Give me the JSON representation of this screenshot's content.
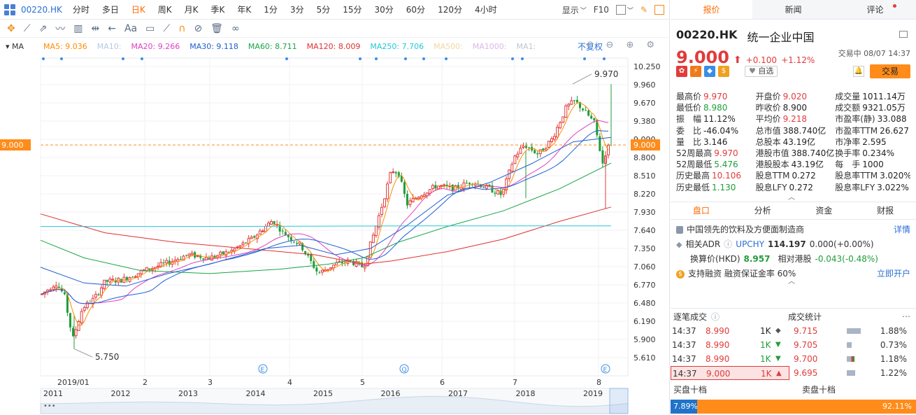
{
  "toolbar": {
    "code": "00220.HK",
    "periods": [
      "分时",
      "多日",
      "日K",
      "周K",
      "月K",
      "季K",
      "年K",
      "1分",
      "3分",
      "5分",
      "15分",
      "30分",
      "60分",
      "120分",
      "4小时"
    ],
    "active_period": "日K",
    "display_label": "显示",
    "f10_label": "F10"
  },
  "ma_legend": {
    "tag": "MA",
    "items": [
      {
        "label": "MA5: 9.036",
        "color": "#ff8c00"
      },
      {
        "label": "MA10:",
        "color": "#b8c8e8"
      },
      {
        "label": "MA20: 9.266",
        "color": "#e040c0"
      },
      {
        "label": "MA30: 9.118",
        "color": "#1f5fd1"
      },
      {
        "label": "MA60: 8.711",
        "color": "#1aa34a"
      },
      {
        "label": "MA120: 8.009",
        "color": "#e03030"
      },
      {
        "label": "MA250: 7.706",
        "color": "#22c8d8"
      },
      {
        "label": "MA500:",
        "color": "#f2d6a0"
      },
      {
        "label": "MA1000:",
        "color": "#d8b8e8"
      },
      {
        "label": "MA1:",
        "color": "#bfc6cf"
      }
    ],
    "adjust_label": "不复权"
  },
  "chart_data": {
    "type": "candlestick",
    "y_ticks": [
      "10.250",
      "9.960",
      "9.670",
      "9.380",
      "9.090",
      "9.000",
      "8.800",
      "8.510",
      "8.220",
      "7.930",
      "7.640",
      "7.350",
      "7.060",
      "6.770",
      "6.480",
      "6.190",
      "5.900",
      "5.610"
    ],
    "ylim": [
      5.61,
      10.25
    ],
    "current_price_line": 9.0,
    "x_labels": [
      "2019/01",
      "2",
      "3",
      "4",
      "5",
      "6",
      "7",
      "8"
    ],
    "high_marker": "9.970",
    "low_marker": "5.750",
    "ma": {
      "MA5": 9.036,
      "MA20": 9.266,
      "MA30": 9.118,
      "MA60": 8.711,
      "MA120": 8.009,
      "MA250": 7.706
    },
    "nav_years": [
      "2011",
      "2012",
      "2013",
      "2014",
      "2015",
      "2016",
      "2017",
      "2018",
      "2019"
    ]
  },
  "tabs": [
    "报价",
    "新闻",
    "评论"
  ],
  "quote": {
    "code": "00220.HK",
    "name": "统一企业中国",
    "price": "9.000",
    "arrow": "⬆",
    "change": "+0.100",
    "change_pct": "+1.12%",
    "status": "交易中 08/07 14:37",
    "watch_label": "自选",
    "trade_label": "交易"
  },
  "stats": [
    [
      [
        "最高价",
        "9.970",
        "red"
      ],
      [
        "开盘价",
        "9.020",
        "red"
      ],
      [
        "成交量",
        "1011.14万",
        "dark"
      ]
    ],
    [
      [
        "最低价",
        "8.980",
        "green"
      ],
      [
        "昨收价",
        "8.900",
        "dark"
      ],
      [
        "成交额",
        "9321.05万",
        "dark"
      ]
    ],
    [
      [
        "振　幅",
        "11.12%",
        "dark"
      ],
      [
        "平均价",
        "9.218",
        "red"
      ],
      [
        "市盈率(静)",
        "33.088",
        "dark"
      ]
    ],
    [
      [
        "委　比",
        "-46.04%",
        "dark"
      ],
      [
        "总市值",
        "388.740亿",
        "dark"
      ],
      [
        "市盈率TTM",
        "26.627",
        "dark"
      ]
    ],
    [
      [
        "量　比",
        "3.146",
        "dark"
      ],
      [
        "总股本",
        "43.19亿",
        "dark"
      ],
      [
        "市净率",
        "2.595",
        "dark"
      ]
    ],
    [
      [
        "52周最高",
        "9.970",
        "red"
      ],
      [
        "港股市值",
        "388.740亿",
        "dark"
      ],
      [
        "换手率",
        "0.234%",
        "dark"
      ]
    ],
    [
      [
        "52周最低",
        "5.476",
        "green"
      ],
      [
        "港股股本",
        "43.19亿",
        "dark"
      ],
      [
        "每　手",
        "1000",
        "dark"
      ]
    ],
    [
      [
        "历史最高",
        "10.106",
        "red"
      ],
      [
        "股息TTM",
        "0.272",
        "dark"
      ],
      [
        "股息率TTM",
        "3.020%",
        "dark"
      ]
    ],
    [
      [
        "历史最低",
        "1.130",
        "green"
      ],
      [
        "股息LFY",
        "0.272",
        "dark"
      ],
      [
        "股息率LFY",
        "3.022%",
        "dark"
      ]
    ]
  ],
  "subtabs": [
    "盘口",
    "分析",
    "资金",
    "财报"
  ],
  "info": {
    "desc": "中国领先的饮料及方便面制造商",
    "detail_link": "详情",
    "adr_label": "相关ADR",
    "adr_code": "UPCHY",
    "adr_price": "114.197",
    "adr_change": "0.000(+0.00%)",
    "conv_label": "换算价(HKD)",
    "conv_price": "8.957",
    "rel_label": "相对港股",
    "rel_value": "-0.043(-0.48%)",
    "margin_text": "支持融资  融资保证金率 60%",
    "open_link": "立即开户"
  },
  "ticks": {
    "title": "逐笔成交",
    "rows": [
      {
        "time": "14:37",
        "price": "8.990",
        "vol": "1K",
        "dir": "◆",
        "dircolor": "#555"
      },
      {
        "time": "14:37",
        "price": "8.990",
        "vol": "1K",
        "dir": "▼",
        "dircolor": "#1f9d3a"
      },
      {
        "time": "14:37",
        "price": "8.990",
        "vol": "1K",
        "dir": "▼",
        "dircolor": "#1f9d3a"
      },
      {
        "time": "14:37",
        "price": "9.000",
        "vol": "1K",
        "dir": "▲",
        "dircolor": "#e23b3b"
      }
    ]
  },
  "volstat": {
    "title": "成交统计",
    "rows": [
      {
        "price": "9.715",
        "pct": "1.88%",
        "w": 20
      },
      {
        "price": "9.705",
        "pct": "0.73%",
        "w": 7
      },
      {
        "price": "9.700",
        "pct": "1.18%",
        "w": 11
      },
      {
        "price": "9.695",
        "pct": "1.22%",
        "w": 12
      }
    ]
  },
  "depth": {
    "bid_label": "买盘十档",
    "ask_label": "卖盘十档",
    "bid_pct": "7.89%",
    "ask_pct": "92.11%"
  }
}
